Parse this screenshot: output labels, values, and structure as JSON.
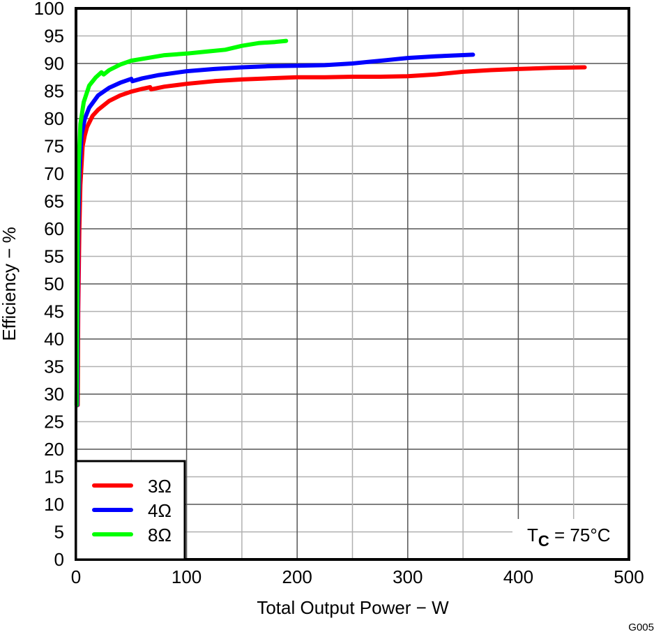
{
  "chart_data": {
    "type": "line",
    "title": "",
    "xlabel": "Total Output Power − W",
    "ylabel": "Efficiency − %",
    "xlim": [
      0,
      500
    ],
    "ylim": [
      0,
      100
    ],
    "x_ticks": [
      0,
      100,
      200,
      300,
      400,
      500
    ],
    "x_minor_grid": [
      50,
      150,
      250,
      350,
      450
    ],
    "y_ticks": [
      0,
      5,
      10,
      15,
      20,
      25,
      30,
      35,
      40,
      45,
      50,
      55,
      60,
      65,
      70,
      75,
      80,
      85,
      90,
      95,
      100
    ],
    "grid": true,
    "legend_position": "lower left",
    "annotation": {
      "main": "T",
      "sub": "C",
      "rest": " = 75°C"
    },
    "figure_id": "G005",
    "series": [
      {
        "name": "3Ω",
        "color": "#ff0000",
        "points": [
          [
            1.5,
            28
          ],
          [
            2,
            45
          ],
          [
            3,
            60
          ],
          [
            4,
            68
          ],
          [
            6,
            75
          ],
          [
            8,
            77
          ],
          [
            10,
            78.5
          ],
          [
            15,
            80.5
          ],
          [
            20,
            81.6
          ],
          [
            30,
            83.2
          ],
          [
            40,
            84.2
          ],
          [
            50,
            84.9
          ],
          [
            60,
            85.4
          ],
          [
            67,
            85.7
          ],
          [
            68,
            85.3
          ],
          [
            80,
            85.8
          ],
          [
            100,
            86.3
          ],
          [
            125,
            86.8
          ],
          [
            150,
            87.1
          ],
          [
            175,
            87.3
          ],
          [
            200,
            87.5
          ],
          [
            225,
            87.5
          ],
          [
            250,
            87.6
          ],
          [
            275,
            87.6
          ],
          [
            300,
            87.7
          ],
          [
            325,
            88.0
          ],
          [
            350,
            88.5
          ],
          [
            375,
            88.8
          ],
          [
            400,
            89.0
          ],
          [
            430,
            89.2
          ],
          [
            460,
            89.3
          ]
        ]
      },
      {
        "name": "4Ω",
        "color": "#0000ff",
        "points": [
          [
            1,
            28
          ],
          [
            1.5,
            45
          ],
          [
            2,
            60
          ],
          [
            3,
            70
          ],
          [
            5,
            77
          ],
          [
            8,
            80
          ],
          [
            12,
            82
          ],
          [
            20,
            84.2
          ],
          [
            30,
            85.6
          ],
          [
            40,
            86.5
          ],
          [
            50,
            87.2
          ],
          [
            51,
            86.8
          ],
          [
            60,
            87.3
          ],
          [
            75,
            87.9
          ],
          [
            100,
            88.6
          ],
          [
            125,
            89.0
          ],
          [
            150,
            89.3
          ],
          [
            175,
            89.5
          ],
          [
            200,
            89.6
          ],
          [
            225,
            89.7
          ],
          [
            250,
            90.0
          ],
          [
            265,
            90.3
          ],
          [
            280,
            90.6
          ],
          [
            300,
            91.0
          ],
          [
            325,
            91.3
          ],
          [
            359,
            91.6
          ]
        ]
      },
      {
        "name": "8Ω",
        "color": "#00ff00",
        "points": [
          [
            0.5,
            28
          ],
          [
            1,
            45
          ],
          [
            1.5,
            60
          ],
          [
            2.5,
            72
          ],
          [
            4,
            79
          ],
          [
            7,
            83
          ],
          [
            12,
            86
          ],
          [
            18,
            87.5
          ],
          [
            23,
            88.4
          ],
          [
            25,
            88.0
          ],
          [
            30,
            88.8
          ],
          [
            40,
            89.8
          ],
          [
            50,
            90.5
          ],
          [
            65,
            91.0
          ],
          [
            80,
            91.5
          ],
          [
            100,
            91.8
          ],
          [
            120,
            92.2
          ],
          [
            135,
            92.5
          ],
          [
            150,
            93.2
          ],
          [
            165,
            93.7
          ],
          [
            180,
            93.9
          ],
          [
            190,
            94.1
          ]
        ]
      }
    ]
  },
  "legend": {
    "items": [
      {
        "label": "3Ω",
        "color": "#ff0000"
      },
      {
        "label": "4Ω",
        "color": "#0000ff"
      },
      {
        "label": "8Ω",
        "color": "#00ff00"
      }
    ]
  },
  "colors": {
    "axis": "#000000",
    "grid_major": "#555555",
    "grid_minor": "#b0b0b0",
    "background": "#ffffff"
  }
}
